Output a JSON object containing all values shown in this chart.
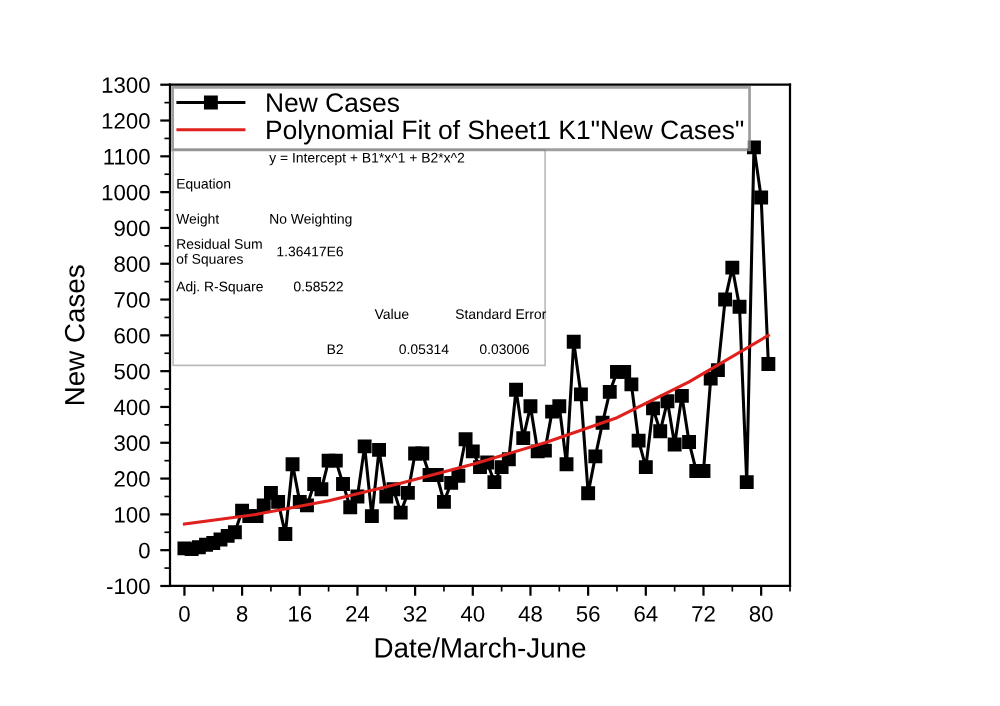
{
  "chart_data": {
    "type": "line",
    "xlabel": "Date/March-June",
    "ylabel": "New Cases",
    "xlim": [
      -2,
      84
    ],
    "xticks": [
      0,
      8,
      16,
      24,
      32,
      40,
      48,
      56,
      64,
      72,
      80
    ],
    "ylim": [
      -100,
      1300
    ],
    "yticks": [
      -100,
      0,
      100,
      200,
      300,
      400,
      500,
      600,
      700,
      800,
      900,
      1000,
      1100,
      1200,
      1300
    ],
    "grid": false,
    "legend": "top left",
    "series": [
      {
        "name": "New Cases",
        "color": "#000000",
        "marker": "square",
        "line_style": "solid",
        "x": [
          0,
          1,
          2,
          3,
          4,
          5,
          6,
          7,
          8,
          9,
          10,
          11,
          12,
          13,
          14,
          15,
          16,
          17,
          18,
          19,
          20,
          21,
          22,
          23,
          24,
          25,
          26,
          27,
          28,
          29,
          30,
          31,
          32,
          33,
          34,
          35,
          36,
          37,
          38,
          39,
          40,
          41,
          42,
          43,
          44,
          45,
          46,
          47,
          48,
          49,
          50,
          51,
          52,
          53,
          54,
          55,
          56,
          57,
          58,
          59,
          60,
          61,
          62,
          63,
          64,
          65,
          66,
          67,
          68,
          69,
          70,
          71,
          72,
          73,
          74,
          75,
          76,
          77,
          78,
          79,
          80,
          81
        ],
        "values": [
          5,
          3,
          8,
          15,
          20,
          30,
          40,
          50,
          110,
          95,
          95,
          125,
          160,
          135,
          45,
          240,
          135,
          125,
          185,
          170,
          250,
          250,
          185,
          120,
          150,
          290,
          95,
          280,
          150,
          170,
          105,
          160,
          270,
          270,
          210,
          210,
          135,
          188,
          208,
          310,
          276,
          232,
          245,
          190,
          232,
          254,
          448,
          313,
          402,
          276,
          278,
          387,
          402,
          240,
          582,
          435,
          159,
          262,
          356,
          442,
          498,
          498,
          463,
          306,
          232,
          396,
          332,
          416,
          295,
          431,
          302,
          221,
          221,
          479,
          503,
          700,
          789,
          680,
          190,
          1125,
          985,
          520
        ]
      },
      {
        "name": "Polynomial Fit of Sheet1 K1\"New Cases\"",
        "color": "#e0201c",
        "marker": "none",
        "line_style": "solid",
        "x": [
          0,
          10,
          20,
          30,
          40,
          50,
          60,
          70,
          81
        ],
        "values": [
          73,
          100,
          138,
          187,
          240,
          300,
          370,
          470,
          600
        ]
      }
    ],
    "annotations": [
      "Equation",
      "y = Intercept + B1*x^1 + B2*x^2",
      "Weight",
      "No Weighting",
      "Residual Sum\nof Squares",
      "1.36417E6",
      "Adj. R-Square",
      "0.58522",
      "Value",
      "Standard Error",
      "B2",
      "0.05314",
      "0.03006"
    ]
  }
}
